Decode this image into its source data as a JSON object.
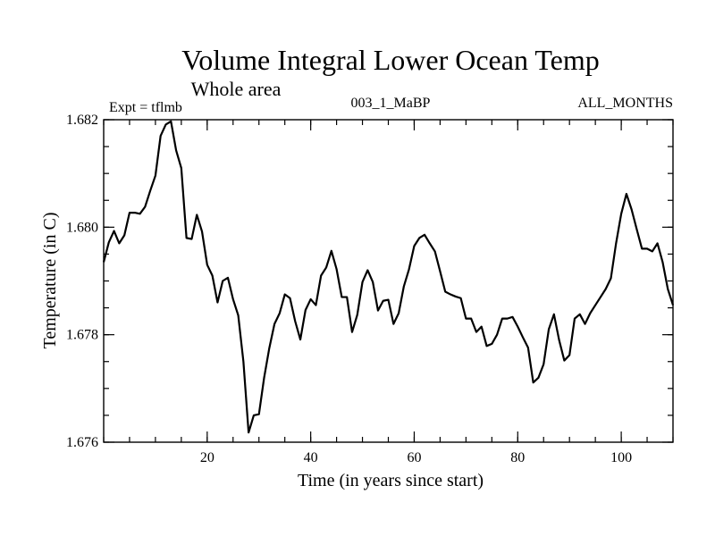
{
  "chart_data": {
    "type": "line",
    "title": "Volume Integral Lower Ocean Temp",
    "subtitle": "Whole area",
    "left_string": "Expt = tflmb",
    "center_string": "003_1_MaBP",
    "right_string": "ALL_MONTHS",
    "xlabel": "Time (in years since start)",
    "ylabel": "Temperature (in C)",
    "xlim": [
      0,
      110
    ],
    "ylim": [
      1.676,
      1.682
    ],
    "xticks": [
      20,
      40,
      60,
      80,
      100
    ],
    "xtick_labels": [
      "20",
      "40",
      "60",
      "80",
      "100"
    ],
    "yticks": [
      1.676,
      1.678,
      1.68,
      1.682
    ],
    "ytick_labels": [
      "1.676",
      "1.678",
      "1.680",
      "1.682"
    ],
    "x_minor_step": 5,
    "y_minor_step": 0.0005,
    "grid": false,
    "series": [
      {
        "name": "Volume Integral Lower Ocean Temp",
        "color": "#000000",
        "x": [
          0,
          1,
          2,
          3,
          4,
          5,
          6,
          7,
          8,
          9,
          10,
          11,
          12,
          13,
          14,
          15,
          16,
          17,
          18,
          19,
          20,
          21,
          22,
          23,
          24,
          25,
          26,
          27,
          28,
          29,
          30,
          31,
          32,
          33,
          34,
          35,
          36,
          37,
          38,
          39,
          40,
          41,
          42,
          43,
          44,
          45,
          46,
          47,
          48,
          49,
          50,
          51,
          52,
          53,
          54,
          55,
          56,
          57,
          58,
          59,
          60,
          61,
          62,
          63,
          64,
          65,
          66,
          67,
          68,
          69,
          70,
          71,
          72,
          73,
          74,
          75,
          76,
          77,
          78,
          79,
          80,
          81,
          82,
          83,
          84,
          85,
          86,
          87,
          88,
          89,
          90,
          91,
          92,
          93,
          94,
          95,
          96,
          97,
          98,
          99,
          100,
          101,
          102,
          103,
          104,
          105,
          106,
          107,
          108,
          109,
          110
        ],
        "values": [
          1.67935,
          1.67972,
          1.67993,
          1.6797,
          1.67985,
          1.68027,
          1.68027,
          1.68025,
          1.68038,
          1.68068,
          1.68096,
          1.6817,
          1.68191,
          1.68197,
          1.68143,
          1.6811,
          1.6798,
          1.67978,
          1.68023,
          1.67992,
          1.6793,
          1.6791,
          1.6786,
          1.679,
          1.67906,
          1.67866,
          1.67836,
          1.6775,
          1.67618,
          1.6765,
          1.67652,
          1.6772,
          1.67775,
          1.6782,
          1.6784,
          1.67875,
          1.67868,
          1.67825,
          1.67791,
          1.67846,
          1.67866,
          1.67855,
          1.6791,
          1.67925,
          1.67956,
          1.67922,
          1.6787,
          1.6787,
          1.67805,
          1.67837,
          1.67898,
          1.6792,
          1.67898,
          1.67845,
          1.67863,
          1.67865,
          1.6782,
          1.6784,
          1.6789,
          1.67922,
          1.67965,
          1.6798,
          1.67986,
          1.6797,
          1.67955,
          1.67918,
          1.6788,
          1.67875,
          1.67871,
          1.67868,
          1.6783,
          1.6783,
          1.67805,
          1.67815,
          1.67779,
          1.67783,
          1.678,
          1.6783,
          1.6783,
          1.67833,
          1.67815,
          1.67795,
          1.67776,
          1.67711,
          1.6772,
          1.67745,
          1.6781,
          1.67838,
          1.6779,
          1.67752,
          1.67762,
          1.6783,
          1.67838,
          1.6782,
          1.6784,
          1.67855,
          1.6787,
          1.67885,
          1.67905,
          1.6797,
          1.68025,
          1.68062,
          1.68033,
          1.67996,
          1.6796,
          1.6796,
          1.67955,
          1.6797,
          1.67935,
          1.67885,
          1.67855
        ]
      }
    ]
  }
}
